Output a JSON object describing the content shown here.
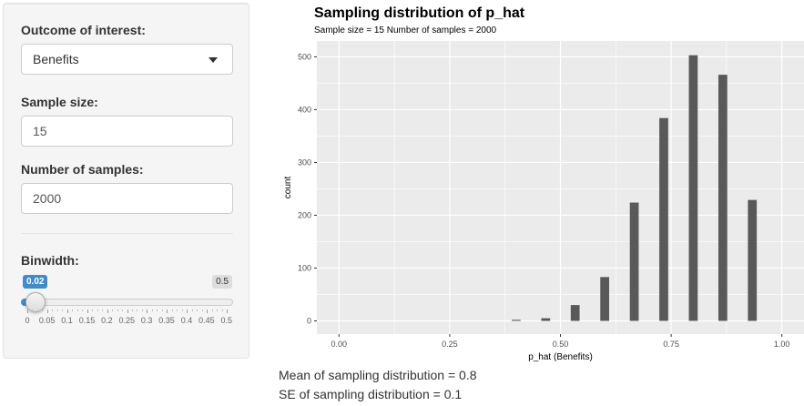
{
  "sidebar": {
    "outcome": {
      "label": "Outcome of interest:",
      "selected": "Benefits"
    },
    "sample_size": {
      "label": "Sample size:",
      "value": "15"
    },
    "num_samples": {
      "label": "Number of samples:",
      "value": "2000"
    },
    "binwidth": {
      "label": "Binwidth:",
      "value": 0.02,
      "value_label": "0.02",
      "min": 0,
      "max": 0.5,
      "max_label": "0.5",
      "tick_labels": [
        "0",
        "0.05",
        "0.1",
        "0.15",
        "0.2",
        "0.25",
        "0.3",
        "0.35",
        "0.4",
        "0.45",
        "0.5"
      ]
    }
  },
  "chart_data": {
    "type": "bar",
    "title": "Sampling distribution of p_hat",
    "subtitle": "Sample size = 15 Number of samples = 2000",
    "xlabel": "p_hat (Benefits)",
    "ylabel": "count",
    "xlim": [
      -0.05,
      1.05
    ],
    "ylim": [
      -25,
      530
    ],
    "xticks": [
      0.0,
      0.25,
      0.5,
      0.75,
      1.0
    ],
    "xtick_labels": [
      "0.00",
      "0.25",
      "0.50",
      "0.75",
      "1.00"
    ],
    "yticks": [
      0,
      100,
      200,
      300,
      400,
      500
    ],
    "ytick_labels": [
      "0",
      "100",
      "200",
      "300",
      "400",
      "500"
    ],
    "binwidth": 0.02,
    "x": [
      0.4,
      0.4667,
      0.5333,
      0.6,
      0.6667,
      0.7333,
      0.8,
      0.8667,
      0.9333
    ],
    "values": [
      2,
      5,
      30,
      83,
      224,
      384,
      503,
      466,
      229
    ],
    "grid": true,
    "colors": {
      "panel": "#ebebeb",
      "grid": "#ffffff",
      "bar": "#595959"
    }
  },
  "stats": {
    "mean": "Mean of sampling distribution = 0.8",
    "se": "SE of sampling distribution = 0.1"
  }
}
